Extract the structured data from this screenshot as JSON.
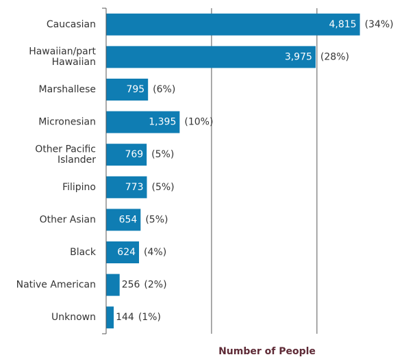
{
  "chart_data": {
    "type": "bar",
    "orientation": "horizontal",
    "x_label": "Number of People",
    "categories": [
      "Caucasian",
      "Hawaiian/part\nHawaiian",
      "Marshallese",
      "Micronesian",
      "Other Pacific\nIslander",
      "Filipino",
      "Other Asian",
      "Black",
      "Native American",
      "Unknown"
    ],
    "values": [
      4815,
      3975,
      795,
      1395,
      769,
      773,
      654,
      624,
      256,
      144
    ],
    "value_labels": [
      "4,815",
      "3,975",
      "795",
      "1,395",
      "769",
      "773",
      "654",
      "624",
      "256",
      "144"
    ],
    "share_labels": [
      "(34%)",
      "(28%)",
      "(6%)",
      "(10%)",
      "(5%)",
      "(5%)",
      "(5%)",
      "(4%)",
      "(2%)",
      "(1%)"
    ],
    "color": "#0f7db3",
    "xlim": [
      0,
      5600
    ],
    "xticks": [
      0,
      2000,
      4000
    ],
    "grid": true
  }
}
